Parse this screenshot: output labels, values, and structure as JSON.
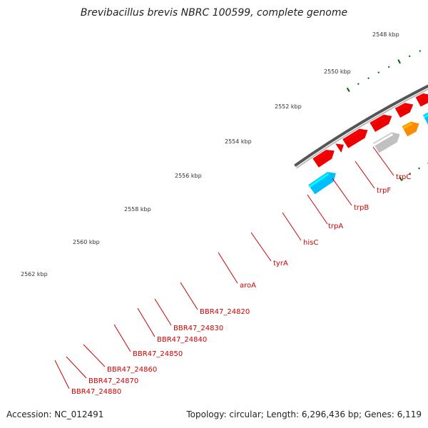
{
  "title": "Brevibacillus brevis NBRC 100599, complete genome",
  "accession": "Accession: NC_012491",
  "summary": "Topology: circular; Length: 6,296,436 bp; Genes: 6,119",
  "colors": {
    "forward_gene": "#ee0000",
    "reverse_gene": "#4682b4",
    "rna_gene": "#00bfff",
    "pseudo_gene": "#c0c0c0",
    "other_gene": "#ff8c00",
    "highlight_gene": "#0000dd",
    "backbone": "#808080",
    "tick": "#006400",
    "label": "#cc0000"
  },
  "scale_labels": [
    "2548 kbp",
    "2550 kbp",
    "2552 kbp",
    "2554 kbp",
    "2556 kbp",
    "2558 kbp",
    "2560 kbp",
    "2562 kbp"
  ],
  "gene_labels": [
    "trpC",
    "trpF",
    "trpB",
    "trpA",
    "hisC",
    "tyrA",
    "aroA",
    "BBR47_24820",
    "BBR47_24830",
    "BBR47_24840",
    "BBR47_24850",
    "BBR47_24860",
    "BBR47_24870",
    "BBR47_24880"
  ]
}
